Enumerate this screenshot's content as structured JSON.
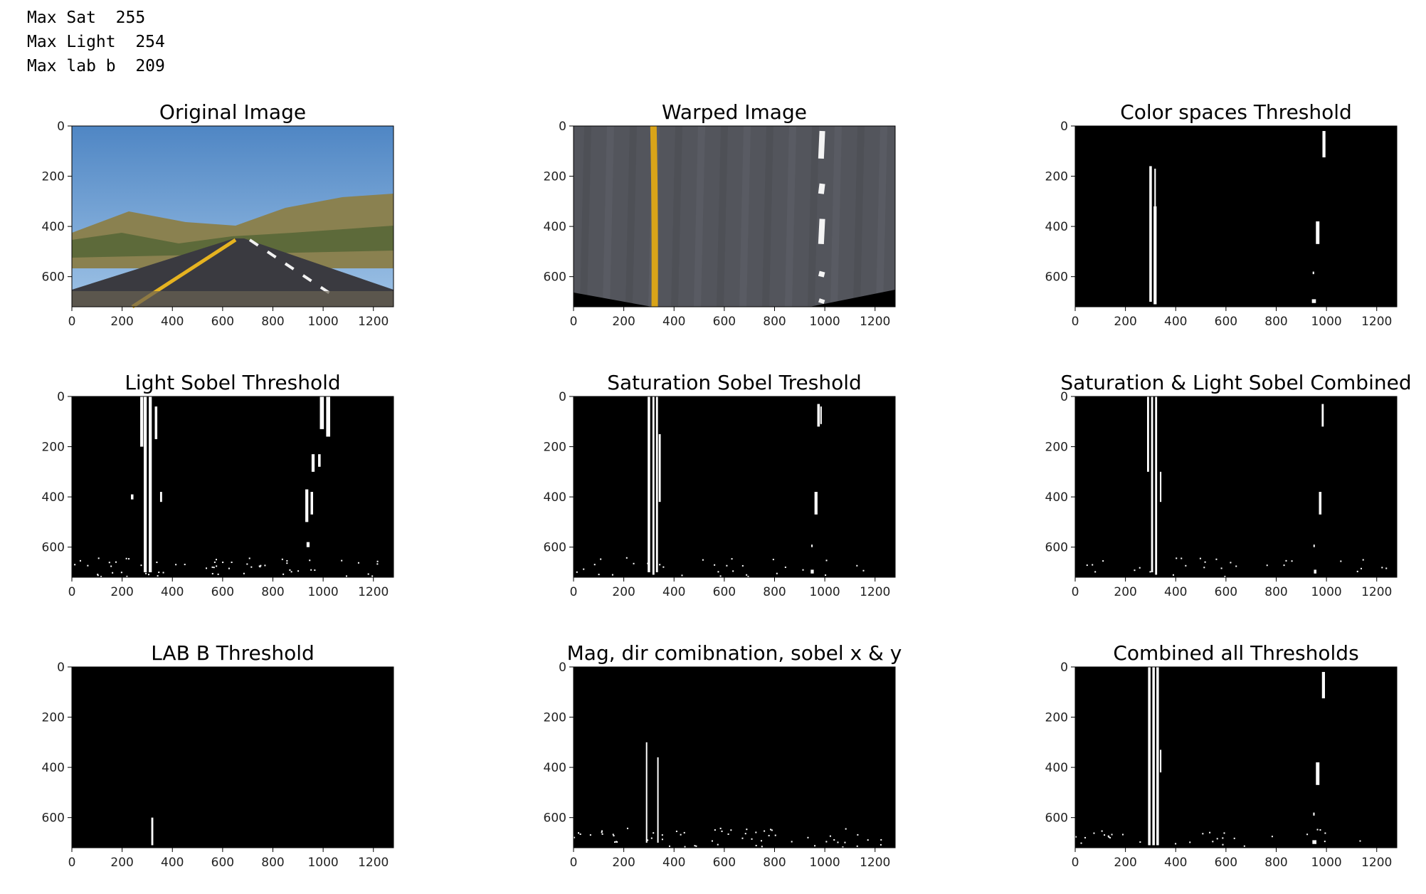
{
  "console": {
    "lines": [
      {
        "label": "Max Sat",
        "value": "255"
      },
      {
        "label": "Max Light",
        "value": "254"
      },
      {
        "label": "Max lab b",
        "value": "209"
      }
    ]
  },
  "axes": {
    "x_ticks": [
      "0",
      "200",
      "400",
      "600",
      "800",
      "1000",
      "1200"
    ],
    "y_ticks": [
      "0",
      "200",
      "400",
      "600"
    ],
    "x_max": 1280,
    "y_max": 720
  },
  "panels": [
    {
      "id": "original",
      "title": "Original Image",
      "kind": "road"
    },
    {
      "id": "warped",
      "title": "Warped Image",
      "kind": "warped"
    },
    {
      "id": "color-spaces",
      "title": "Color spaces Threshold",
      "kind": "binary"
    },
    {
      "id": "light-sobel",
      "title": "Light Sobel Threshold",
      "kind": "binary"
    },
    {
      "id": "saturation-sobel",
      "title": "Saturation Sobel Treshold",
      "kind": "binary"
    },
    {
      "id": "sat-light-combined",
      "title": "Saturation & Light Sobel Combined",
      "kind": "binary"
    },
    {
      "id": "lab-b",
      "title": "LAB B Threshold",
      "kind": "binary"
    },
    {
      "id": "mag-dir",
      "title": "Mag, dir comibnation, sobel x & y",
      "kind": "binary"
    },
    {
      "id": "combined-all",
      "title": "Combined all Thresholds",
      "kind": "binary"
    }
  ]
}
